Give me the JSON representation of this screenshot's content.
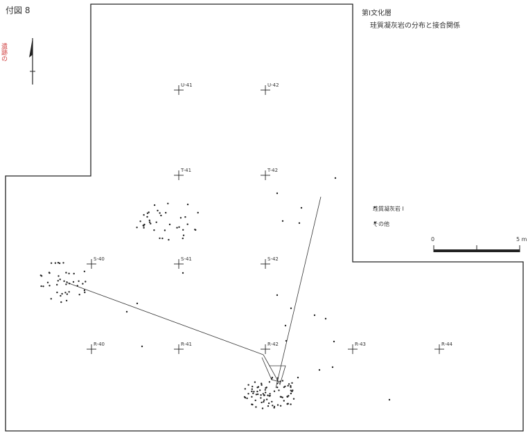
{
  "figure_label": "付図 8",
  "margin_note": "遺跡の",
  "title": "第Ⅰ文化層",
  "subtitle": "珪質凝灰岩の分布と接合関係",
  "legend": {
    "items": [
      {
        "label": "珪質凝灰岩 I"
      },
      {
        "label": "その他"
      }
    ]
  },
  "scale": {
    "start": "0",
    "end": "5 m"
  },
  "grid": [
    {
      "label": "U-41"
    },
    {
      "label": "U-42"
    },
    {
      "label": "T-41"
    },
    {
      "label": "T-42"
    },
    {
      "label": "S-40"
    },
    {
      "label": "S-41"
    },
    {
      "label": "S-42"
    },
    {
      "label": "R-40"
    },
    {
      "label": "R-41"
    },
    {
      "label": "R-42"
    },
    {
      "label": "R-43"
    },
    {
      "label": "R-44"
    }
  ],
  "colors": {
    "ink": "#222222",
    "paper": "#ffffff",
    "note": "#d04040"
  }
}
